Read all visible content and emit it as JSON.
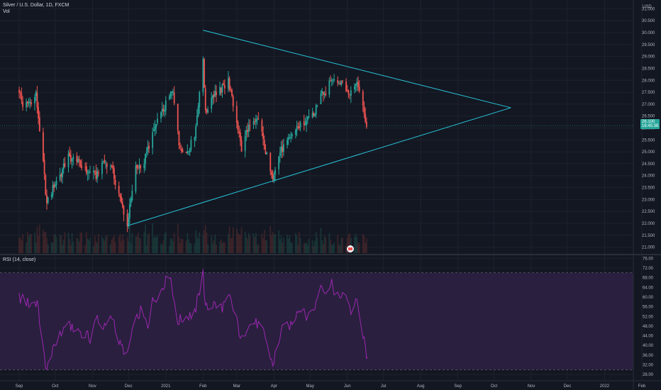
{
  "header": {
    "symbol": "Silver / U.S. Dollar, 1D, FXCM",
    "volume_label": "Vol",
    "currency": "USD"
  },
  "rsi_panel": {
    "label": "RSI (14, close)"
  },
  "last_price": {
    "value": "26.100",
    "countdown": "16:45:38"
  },
  "colors": {
    "background": "#131722",
    "grid": "#1e222d",
    "up_candle": "#26a69a",
    "down_candle": "#ef5350",
    "trendline": "#26c6da",
    "rsi_line": "#9c27b0",
    "rsi_band": "#2a1f3f",
    "axis_text": "#b2b5be"
  },
  "chart_data": [
    {
      "type": "candlestick",
      "title": "Silver / U.S. Dollar, 1D, FXCM",
      "ylim": [
        20.75,
        31.25
      ],
      "y_ticks": [
        21.0,
        21.5,
        22.0,
        22.5,
        23.0,
        23.5,
        24.0,
        24.5,
        25.0,
        25.5,
        26.0,
        26.5,
        27.0,
        27.5,
        28.0,
        28.5,
        29.0,
        29.5,
        30.0,
        30.5,
        31.0
      ],
      "x_labels": [
        "Sep",
        "Oct",
        "Nov",
        "Dec",
        "2021",
        "Feb",
        "Mar",
        "Apr",
        "May",
        "Jun",
        "Jul",
        "Aug",
        "Sep",
        "Oct",
        "Nov",
        "Dec",
        "2022",
        "Feb"
      ],
      "close_path": [
        {
          "date": "2020-09-01",
          "value": 27.6
        },
        {
          "date": "2020-09-04",
          "value": 26.9
        },
        {
          "date": "2020-09-10",
          "value": 27.1
        },
        {
          "date": "2020-09-15",
          "value": 27.4
        },
        {
          "date": "2020-09-21",
          "value": 24.5
        },
        {
          "date": "2020-09-24",
          "value": 22.8
        },
        {
          "date": "2020-09-30",
          "value": 23.6
        },
        {
          "date": "2020-10-06",
          "value": 24.1
        },
        {
          "date": "2020-10-12",
          "value": 24.8
        },
        {
          "date": "2020-10-19",
          "value": 24.6
        },
        {
          "date": "2020-10-26",
          "value": 24.2
        },
        {
          "date": "2020-11-04",
          "value": 24.0
        },
        {
          "date": "2020-11-09",
          "value": 24.6
        },
        {
          "date": "2020-11-16",
          "value": 24.5
        },
        {
          "date": "2020-11-24",
          "value": 23.0
        },
        {
          "date": "2020-11-30",
          "value": 22.0
        },
        {
          "date": "2020-12-07",
          "value": 24.3
        },
        {
          "date": "2020-12-14",
          "value": 24.6
        },
        {
          "date": "2020-12-21",
          "value": 25.8
        },
        {
          "date": "2021-01-04",
          "value": 27.3
        },
        {
          "date": "2021-01-07",
          "value": 27.6
        },
        {
          "date": "2021-01-12",
          "value": 25.3
        },
        {
          "date": "2021-01-18",
          "value": 25.0
        },
        {
          "date": "2021-01-25",
          "value": 25.6
        },
        {
          "date": "2021-02-01",
          "value": 29.0
        },
        {
          "date": "2021-02-03",
          "value": 26.6
        },
        {
          "date": "2021-02-09",
          "value": 27.4
        },
        {
          "date": "2021-02-16",
          "value": 27.6
        },
        {
          "date": "2021-02-22",
          "value": 28.0
        },
        {
          "date": "2021-02-25",
          "value": 27.2
        },
        {
          "date": "2021-03-01",
          "value": 26.3
        },
        {
          "date": "2021-03-05",
          "value": 25.1
        },
        {
          "date": "2021-03-10",
          "value": 26.0
        },
        {
          "date": "2021-03-16",
          "value": 26.2
        },
        {
          "date": "2021-03-19",
          "value": 26.4
        },
        {
          "date": "2021-03-25",
          "value": 25.0
        },
        {
          "date": "2021-03-31",
          "value": 24.0
        },
        {
          "date": "2021-04-06",
          "value": 25.0
        },
        {
          "date": "2021-04-12",
          "value": 25.4
        },
        {
          "date": "2021-04-19",
          "value": 26.0
        },
        {
          "date": "2021-04-26",
          "value": 26.2
        },
        {
          "date": "2021-05-04",
          "value": 26.5
        },
        {
          "date": "2021-05-10",
          "value": 27.6
        },
        {
          "date": "2021-05-14",
          "value": 27.4
        },
        {
          "date": "2021-05-19",
          "value": 28.1
        },
        {
          "date": "2021-05-24",
          "value": 27.8
        },
        {
          "date": "2021-05-28",
          "value": 28.0
        },
        {
          "date": "2021-06-03",
          "value": 27.4
        },
        {
          "date": "2021-06-08",
          "value": 27.8
        },
        {
          "date": "2021-06-11",
          "value": 27.7
        },
        {
          "date": "2021-06-14",
          "value": 26.8
        },
        {
          "date": "2021-06-17",
          "value": 26.1
        }
      ],
      "trendlines": [
        {
          "points": [
            {
              "date": "2021-02-01",
              "value": 30.1
            },
            {
              "date": "2021-10-15",
              "value": 26.85
            }
          ]
        },
        {
          "points": [
            {
              "date": "2020-11-30",
              "value": 21.9
            },
            {
              "date": "2021-10-15",
              "value": 26.85
            }
          ]
        }
      ]
    },
    {
      "type": "line",
      "title": "RSI (14, close)",
      "ylim": [
        26.0,
        77.0
      ],
      "y_ticks": [
        28.0,
        32.0,
        36.0,
        40.0,
        44.0,
        48.0,
        52.0,
        56.0,
        60.0,
        64.0,
        68.0,
        72.0,
        76.0
      ],
      "bands": [
        30,
        70
      ],
      "series": [
        {
          "points": [
            {
              "date": "2020-09-01",
              "value": 60
            },
            {
              "date": "2020-09-10",
              "value": 57
            },
            {
              "date": "2020-09-16",
              "value": 58
            },
            {
              "date": "2020-09-21",
              "value": 38
            },
            {
              "date": "2020-09-24",
              "value": 30
            },
            {
              "date": "2020-10-01",
              "value": 40
            },
            {
              "date": "2020-10-08",
              "value": 47
            },
            {
              "date": "2020-10-15",
              "value": 48
            },
            {
              "date": "2020-10-22",
              "value": 46
            },
            {
              "date": "2020-10-30",
              "value": 43
            },
            {
              "date": "2020-11-05",
              "value": 52
            },
            {
              "date": "2020-11-11",
              "value": 47
            },
            {
              "date": "2020-11-18",
              "value": 52
            },
            {
              "date": "2020-11-24",
              "value": 40
            },
            {
              "date": "2020-11-30",
              "value": 37
            },
            {
              "date": "2020-12-07",
              "value": 50
            },
            {
              "date": "2020-12-11",
              "value": 54
            },
            {
              "date": "2020-12-17",
              "value": 48
            },
            {
              "date": "2020-12-21",
              "value": 58
            },
            {
              "date": "2020-12-31",
              "value": 66
            },
            {
              "date": "2021-01-05",
              "value": 68
            },
            {
              "date": "2021-01-11",
              "value": 50
            },
            {
              "date": "2021-01-18",
              "value": 52
            },
            {
              "date": "2021-01-25",
              "value": 53
            },
            {
              "date": "2021-02-01",
              "value": 70
            },
            {
              "date": "2021-02-03",
              "value": 55
            },
            {
              "date": "2021-02-10",
              "value": 57
            },
            {
              "date": "2021-02-17",
              "value": 56
            },
            {
              "date": "2021-02-23",
              "value": 60
            },
            {
              "date": "2021-03-01",
              "value": 50
            },
            {
              "date": "2021-03-05",
              "value": 42
            },
            {
              "date": "2021-03-11",
              "value": 50
            },
            {
              "date": "2021-03-18",
              "value": 49
            },
            {
              "date": "2021-03-24",
              "value": 45
            },
            {
              "date": "2021-03-31",
              "value": 32
            },
            {
              "date": "2021-04-07",
              "value": 46
            },
            {
              "date": "2021-04-14",
              "value": 48
            },
            {
              "date": "2021-04-21",
              "value": 55
            },
            {
              "date": "2021-04-28",
              "value": 52
            },
            {
              "date": "2021-05-04",
              "value": 54
            },
            {
              "date": "2021-05-10",
              "value": 67
            },
            {
              "date": "2021-05-14",
              "value": 60
            },
            {
              "date": "2021-05-19",
              "value": 65
            },
            {
              "date": "2021-05-24",
              "value": 60
            },
            {
              "date": "2021-05-31",
              "value": 62
            },
            {
              "date": "2021-06-04",
              "value": 54
            },
            {
              "date": "2021-06-09",
              "value": 58
            },
            {
              "date": "2021-06-14",
              "value": 45
            },
            {
              "date": "2021-06-17",
              "value": 34
            },
            {
              "date": "2021-06-18",
              "value": 37
            }
          ]
        }
      ]
    }
  ]
}
